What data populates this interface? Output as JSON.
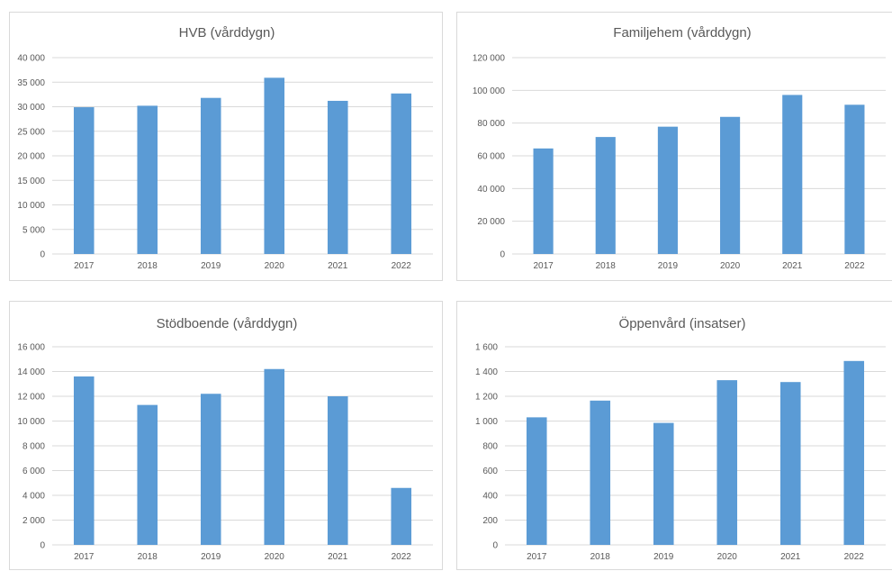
{
  "chart_data": [
    {
      "type": "bar",
      "title": "HVB (vårddygn)",
      "categories": [
        "2017",
        "2018",
        "2019",
        "2020",
        "2021",
        "2022"
      ],
      "values": [
        29900,
        30200,
        31800,
        35900,
        31200,
        32700
      ],
      "ylim": [
        0,
        40000
      ],
      "yticks": [
        0,
        5000,
        10000,
        15000,
        20000,
        25000,
        30000,
        35000,
        40000
      ],
      "ytick_labels": [
        "0",
        "5 000",
        "10 000",
        "15 000",
        "20 000",
        "25 000",
        "30 000",
        "35 000",
        "40 000"
      ],
      "grid": true,
      "color": "#5b9bd5"
    },
    {
      "type": "bar",
      "title": "Familjehem (vårddygn)",
      "categories": [
        "2017",
        "2018",
        "2019",
        "2020",
        "2021",
        "2022"
      ],
      "values": [
        64500,
        71500,
        77800,
        83800,
        97200,
        91200
      ],
      "ylim": [
        0,
        120000
      ],
      "yticks": [
        0,
        20000,
        40000,
        60000,
        80000,
        100000,
        120000
      ],
      "ytick_labels": [
        "0",
        "20 000",
        "40 000",
        "60 000",
        "80 000",
        "100 000",
        "120 000"
      ],
      "grid": true,
      "color": "#5b9bd5"
    },
    {
      "type": "bar",
      "title": "Stödboende (vårddygn)",
      "categories": [
        "2017",
        "2018",
        "2019",
        "2020",
        "2021",
        "2022"
      ],
      "values": [
        13600,
        11300,
        12200,
        14200,
        12000,
        4600
      ],
      "ylim": [
        0,
        16000
      ],
      "yticks": [
        0,
        2000,
        4000,
        6000,
        8000,
        10000,
        12000,
        14000,
        16000
      ],
      "ytick_labels": [
        "0",
        "2 000",
        "4 000",
        "6 000",
        "8 000",
        "10 000",
        "12 000",
        "14 000",
        "16 000"
      ],
      "grid": true,
      "color": "#5b9bd5"
    },
    {
      "type": "bar",
      "title": "Öppenvård (insatser)",
      "categories": [
        "2017",
        "2018",
        "2019",
        "2020",
        "2021",
        "2022"
      ],
      "values": [
        1030,
        1165,
        985,
        1330,
        1315,
        1485
      ],
      "ylim": [
        0,
        1600
      ],
      "yticks": [
        0,
        200,
        400,
        600,
        800,
        1000,
        1200,
        1400,
        1600
      ],
      "ytick_labels": [
        "0",
        "200",
        "400",
        "600",
        "800",
        "1 000",
        "1 200",
        "1 400",
        "1 600"
      ],
      "grid": true,
      "color": "#5b9bd5"
    }
  ]
}
